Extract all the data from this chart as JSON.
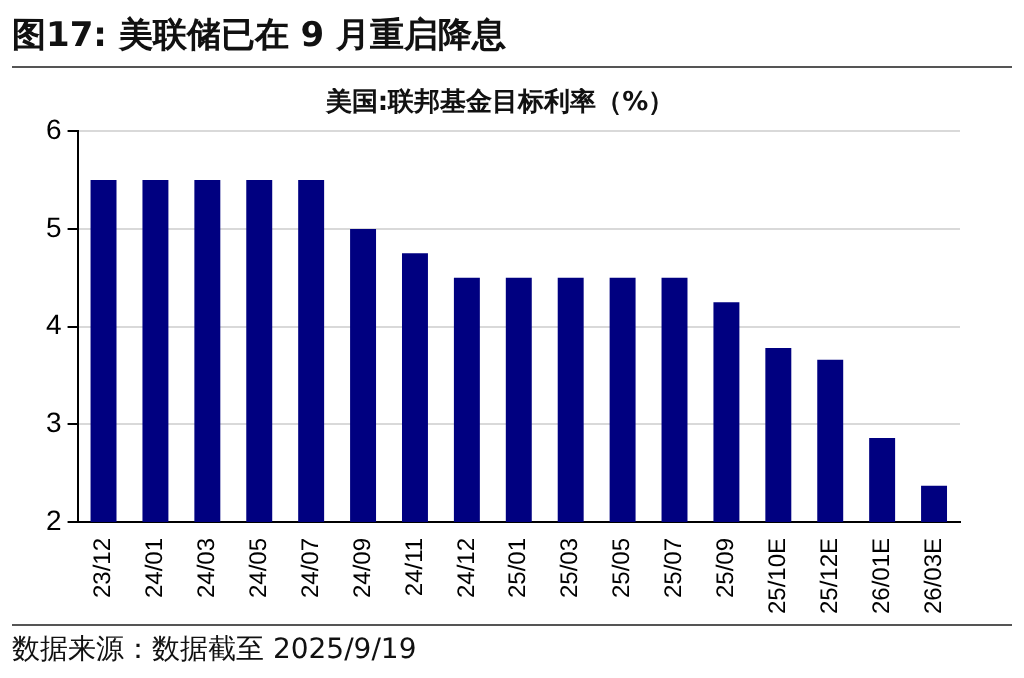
{
  "chart_data": {
    "type": "bar",
    "title": "图17:  美联储已在 9 月重启降息",
    "subtitle": "美国:联邦基金目标利率（%）",
    "categories": [
      "23/12",
      "24/01",
      "24/03",
      "24/05",
      "24/07",
      "24/09",
      "24/11",
      "24/12",
      "25/01",
      "25/03",
      "25/05",
      "25/07",
      "25/09",
      "25/10E",
      "25/12E",
      "26/01E",
      "26/03E"
    ],
    "values": [
      5.5,
      5.5,
      5.5,
      5.5,
      5.5,
      5.0,
      4.75,
      4.5,
      4.5,
      4.5,
      4.5,
      4.5,
      4.25,
      3.78,
      3.66,
      2.86,
      2.37
    ],
    "color": "#000080",
    "ylim": [
      2,
      6
    ],
    "yticks": [
      2,
      3,
      4,
      5,
      6
    ],
    "grid": "y",
    "legend": false,
    "annotations": [
      "数据来源：数据截至 2025/9/19"
    ]
  }
}
